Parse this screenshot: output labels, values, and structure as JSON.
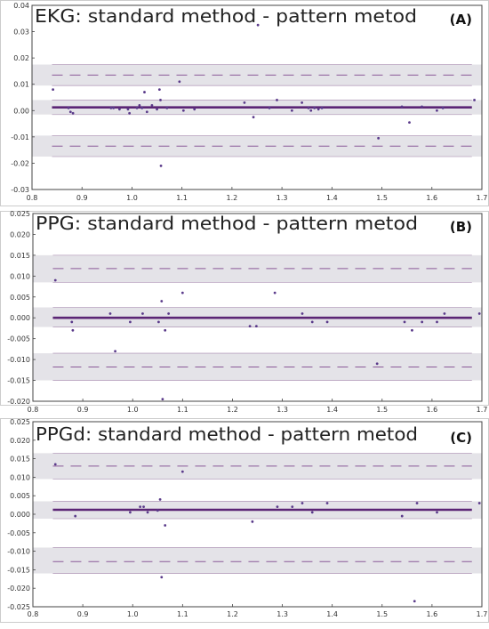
{
  "chart_data": [
    {
      "type": "scatter",
      "title": "EKG: standard method - pattern metod",
      "panel_label": "(A)",
      "xlim": [
        0.8,
        1.7
      ],
      "ylim": [
        -0.03,
        0.04
      ],
      "x_ticks": [
        "0.8",
        "0.9",
        "1.0",
        "1.1",
        "1.2",
        "1.3",
        "1.4",
        "1.5",
        "1.6",
        "1.7"
      ],
      "y_ticks": [
        "0.04",
        "0.03",
        "0.02",
        "0.01",
        "0.00",
        "-0.01",
        "-0.02",
        "-0.03"
      ],
      "mean": 0.0012,
      "mean_band": [
        -0.0015,
        0.004
      ],
      "upper_loa": 0.0135,
      "upper_band": [
        0.0095,
        0.0175
      ],
      "lower_loa": -0.0135,
      "lower_band": [
        -0.0175,
        -0.0095
      ],
      "points": [
        [
          0.842,
          0.008
        ],
        [
          0.873,
          0.001
        ],
        [
          0.877,
          -0.0005
        ],
        [
          0.882,
          -0.001
        ],
        [
          0.958,
          0.001
        ],
        [
          0.963,
          0.001
        ],
        [
          0.975,
          0.0005
        ],
        [
          0.992,
          0.0005
        ],
        [
          0.995,
          -0.001
        ],
        [
          1.01,
          0.001
        ],
        [
          1.015,
          0.002
        ],
        [
          1.02,
          0.001
        ],
        [
          1.025,
          0.007
        ],
        [
          1.03,
          -0.0005
        ],
        [
          1.04,
          0.002
        ],
        [
          1.05,
          0.0005
        ],
        [
          1.055,
          0.008
        ],
        [
          1.057,
          0.004
        ],
        [
          1.058,
          -0.021
        ],
        [
          1.07,
          0.001
        ],
        [
          1.095,
          0.011
        ],
        [
          1.103,
          0.0
        ],
        [
          1.125,
          0.0005
        ],
        [
          1.225,
          0.003
        ],
        [
          1.243,
          -0.0025
        ],
        [
          1.252,
          0.0325
        ],
        [
          1.275,
          0.001
        ],
        [
          1.29,
          0.004
        ],
        [
          1.32,
          0.0
        ],
        [
          1.34,
          0.003
        ],
        [
          1.353,
          0.001
        ],
        [
          1.358,
          0.0
        ],
        [
          1.365,
          0.001
        ],
        [
          1.373,
          0.0005
        ],
        [
          1.38,
          0.001
        ],
        [
          1.493,
          -0.0105
        ],
        [
          1.54,
          0.0015
        ],
        [
          1.555,
          -0.0045
        ],
        [
          1.58,
          0.0015
        ],
        [
          1.61,
          0.0
        ],
        [
          1.622,
          0.001
        ],
        [
          1.685,
          0.004
        ]
      ]
    },
    {
      "type": "scatter",
      "title": "PPG: standard method - pattern metod",
      "panel_label": "(B)",
      "xlim": [
        0.8,
        1.7
      ],
      "ylim": [
        -0.02,
        0.025
      ],
      "x_ticks": [
        "0.8",
        "0.9",
        "1.0",
        "1.1",
        "1.2",
        "1.3",
        "1.4",
        "1.5",
        "1.6",
        "1.7"
      ],
      "y_ticks": [
        "0.025",
        "0.020",
        "0.015",
        "0.010",
        "0.005",
        "0.000",
        "-0.005",
        "-0.010",
        "-0.015",
        "-0.020"
      ],
      "mean": 0.0,
      "mean_band": [
        -0.0022,
        0.0025
      ],
      "upper_loa": 0.0118,
      "upper_band": [
        0.0085,
        0.015
      ],
      "lower_loa": -0.0118,
      "lower_band": [
        -0.015,
        -0.0085
      ],
      "points": [
        [
          0.845,
          0.009
        ],
        [
          0.878,
          -0.001
        ],
        [
          0.88,
          -0.003
        ],
        [
          0.955,
          0.001
        ],
        [
          0.965,
          -0.008
        ],
        [
          0.995,
          -0.001
        ],
        [
          1.02,
          0.001
        ],
        [
          1.052,
          -0.001
        ],
        [
          1.058,
          0.004
        ],
        [
          1.06,
          -0.0195
        ],
        [
          1.065,
          -0.003
        ],
        [
          1.072,
          0.001
        ],
        [
          1.1,
          0.006
        ],
        [
          1.235,
          -0.002
        ],
        [
          1.248,
          -0.002
        ],
        [
          1.285,
          0.006
        ],
        [
          1.34,
          0.001
        ],
        [
          1.36,
          -0.001
        ],
        [
          1.39,
          -0.001
        ],
        [
          1.49,
          -0.011
        ],
        [
          1.545,
          -0.001
        ],
        [
          1.56,
          -0.003
        ],
        [
          1.58,
          -0.001
        ],
        [
          1.61,
          -0.001
        ],
        [
          1.625,
          0.001
        ],
        [
          1.695,
          0.001
        ]
      ]
    },
    {
      "type": "scatter",
      "title": "PPGd: standard method - pattern metod",
      "panel_label": "(C)",
      "xlim": [
        0.8,
        1.7
      ],
      "ylim": [
        -0.025,
        0.025
      ],
      "x_ticks": [
        "0.8",
        "0.9",
        "1.0",
        "1.1",
        "1.2",
        "1.3",
        "1.4",
        "1.5",
        "1.6",
        "1.7"
      ],
      "y_ticks": [
        "0.025",
        "0.020",
        "0.015",
        "0.010",
        "0.005",
        "0.000",
        "-0.005",
        "-0.010",
        "-0.015",
        "-0.020",
        "-0.025"
      ],
      "mean": 0.0012,
      "mean_band": [
        -0.0012,
        0.0035
      ],
      "upper_loa": 0.013,
      "upper_band": [
        0.0095,
        0.0165
      ],
      "lower_loa": -0.0128,
      "lower_band": [
        -0.016,
        -0.009
      ],
      "points": [
        [
          0.845,
          0.0135
        ],
        [
          0.885,
          -0.0005
        ],
        [
          0.995,
          0.0005
        ],
        [
          1.015,
          0.002
        ],
        [
          1.022,
          0.002
        ],
        [
          1.03,
          0.0005
        ],
        [
          1.05,
          0.001
        ],
        [
          1.055,
          0.004
        ],
        [
          1.058,
          -0.017
        ],
        [
          1.065,
          -0.003
        ],
        [
          1.1,
          0.0115
        ],
        [
          1.24,
          -0.002
        ],
        [
          1.29,
          0.002
        ],
        [
          1.32,
          0.002
        ],
        [
          1.34,
          0.003
        ],
        [
          1.36,
          0.0005
        ],
        [
          1.39,
          0.003
        ],
        [
          1.54,
          -0.0005
        ],
        [
          1.565,
          -0.0235
        ],
        [
          1.57,
          0.003
        ],
        [
          1.61,
          0.0005
        ],
        [
          1.695,
          0.003
        ]
      ]
    }
  ],
  "colors": {
    "band": "#e4e3e8",
    "band_edge": "#b9a3bf",
    "mean_line": "#5b2575",
    "loa_dash": "#8a5a98",
    "point": "#5a3a8a",
    "frame": "#444444",
    "panel_border": "#cccccc"
  }
}
